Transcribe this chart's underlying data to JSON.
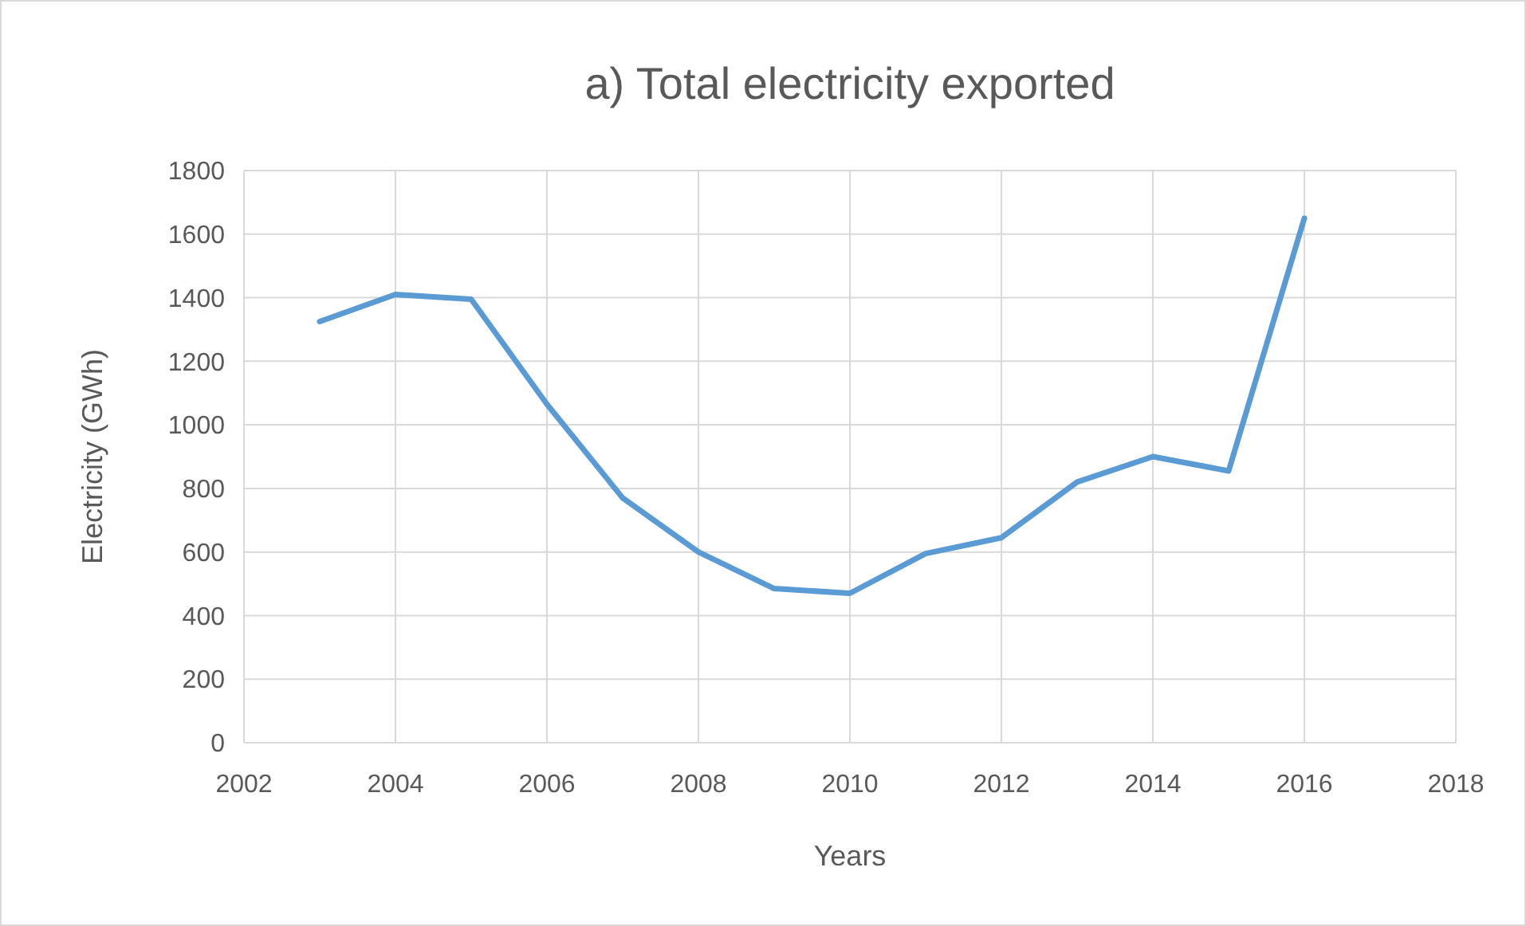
{
  "chart_data": {
    "type": "line",
    "title": "a) Total electricity exported",
    "xlabel": "Years",
    "ylabel": "Electricity (GWh)",
    "x": [
      2003,
      2004,
      2005,
      2006,
      2007,
      2008,
      2009,
      2010,
      2011,
      2012,
      2013,
      2014,
      2015,
      2016
    ],
    "series": [
      {
        "color": "#5b9bd5",
        "values": [
          1325,
          1410,
          1395,
          1065,
          770,
          600,
          485,
          470,
          595,
          645,
          820,
          900,
          855,
          1650
        ]
      }
    ],
    "xlim": [
      2002,
      2018
    ],
    "xticks": [
      2002,
      2004,
      2006,
      2008,
      2010,
      2012,
      2014,
      2016,
      2018
    ],
    "ylim": [
      0,
      1800
    ],
    "yticks": [
      0,
      200,
      400,
      600,
      800,
      1000,
      1200,
      1400,
      1600,
      1800
    ],
    "grid": true,
    "marker": "none",
    "line_style": "solid"
  }
}
